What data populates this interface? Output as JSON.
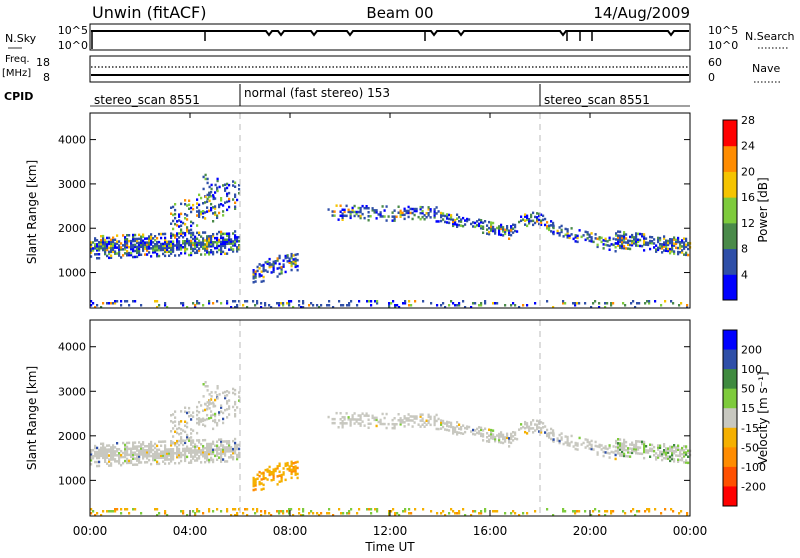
{
  "header": {
    "station": "Unwin (fitACF)",
    "beam": "Beam 00",
    "date": "14/Aug/2009"
  },
  "noise_panel": {
    "left_label": "N.Sky",
    "left_ticks": [
      "10^5",
      "10^0"
    ],
    "right_label": "N.Search",
    "right_ticks": [
      "10^5",
      "10^0"
    ]
  },
  "freq_panel": {
    "left_label_line1": "Freq.",
    "left_label_line2": "[MHz]",
    "left_ticks": [
      "18",
      "8"
    ],
    "right_label": "Nave",
    "right_ticks": [
      "60",
      "0"
    ]
  },
  "cpid": {
    "label": "CPID",
    "segments": [
      {
        "start_hour": 0,
        "text": "stereo_scan 8551"
      },
      {
        "start_hour": 6,
        "text": "normal (fast stereo) 153"
      },
      {
        "start_hour": 18,
        "text": "stereo_scan 8551"
      }
    ]
  },
  "chart_data": [
    {
      "type": "heatmap",
      "name": "power",
      "ylabel": "Slant Range [km]",
      "xlim": [
        0,
        24
      ],
      "ylim": [
        200,
        4600
      ],
      "yticks": [
        1000,
        2000,
        3000,
        4000
      ],
      "colorbar": {
        "label": "Power [dB]",
        "ticks": [
          "4",
          "8",
          "12",
          "16",
          "20",
          "24",
          "28"
        ],
        "colors": [
          "#0000ff",
          "#2f4fa8",
          "#4a8a4a",
          "#7ecb3c",
          "#f5c400",
          "#ff8c00",
          "#ff0000"
        ]
      },
      "features": [
        {
          "x_range": [
            0,
            6
          ],
          "range_km": [
            1300,
            1800
          ],
          "typical_level": "8-20 dB"
        },
        {
          "x_range": [
            3,
            6
          ],
          "range_km": [
            2000,
            3200
          ],
          "typical_level": "4-12 dB"
        },
        {
          "x_range": [
            6,
            8.5
          ],
          "range_km": [
            700,
            1300
          ],
          "typical_level": "4-12 dB"
        },
        {
          "x_range": [
            9.5,
            21
          ],
          "range_km": [
            1900,
            2700
          ],
          "typical_level": "4-8 dB"
        },
        {
          "x_range": [
            21,
            24
          ],
          "range_km": [
            1400,
            2000
          ],
          "typical_level": "8-16 dB"
        },
        {
          "x_range": [
            0,
            24
          ],
          "range_km": [
            200,
            300
          ],
          "typical_level": "4-28 dB"
        }
      ]
    },
    {
      "type": "heatmap",
      "name": "velocity",
      "ylabel": "Slant Range [km]",
      "xlabel": "Time UT",
      "xlim": [
        0,
        24
      ],
      "ylim": [
        200,
        4600
      ],
      "yticks": [
        1000,
        2000,
        3000,
        4000
      ],
      "xticks": [
        "00:00",
        "04:00",
        "08:00",
        "12:00",
        "16:00",
        "20:00",
        "00:00"
      ],
      "colorbar": {
        "label": "Velocity [m s⁻¹]",
        "ticks": [
          "200",
          "100",
          "50",
          "15",
          "-15",
          "-50",
          "-100",
          "-200"
        ],
        "colors": [
          "#0000ff",
          "#2f4fa8",
          "#3f8a3f",
          "#7ecb3c",
          "#c8c8c0",
          "#f5b000",
          "#ff8c00",
          "#ff5000",
          "#ff0000"
        ]
      },
      "features": [
        {
          "x_range": [
            0,
            6
          ],
          "range_km": [
            1300,
            1800
          ],
          "typical_velocity": "ground scatter (gray)"
        },
        {
          "x_range": [
            6.5,
            8.3
          ],
          "range_km": [
            700,
            1500
          ],
          "typical_velocity": "-50 to -100 m/s"
        },
        {
          "x_range": [
            9.5,
            21
          ],
          "range_km": [
            1900,
            2700
          ],
          "typical_velocity": "ground scatter (gray)"
        },
        {
          "x_range": [
            21,
            24
          ],
          "range_km": [
            1400,
            2000
          ],
          "typical_velocity": "-15 to 15 m/s"
        },
        {
          "x_range": [
            0,
            24
          ],
          "range_km": [
            200,
            400
          ],
          "typical_velocity": "-15 to -50 m/s"
        }
      ]
    }
  ]
}
